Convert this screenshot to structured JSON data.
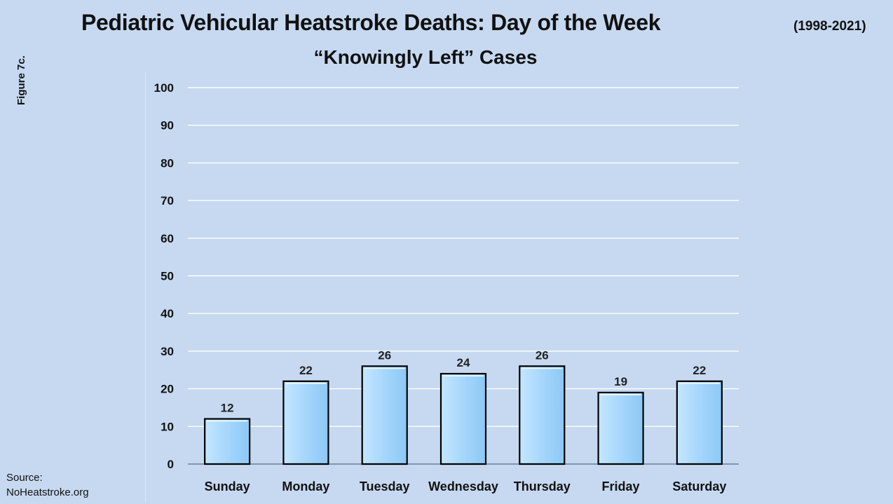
{
  "header": {
    "title": "Pediatric Vehicular Heatstroke Deaths: Day of the Week",
    "years": "(1998-2021)",
    "subtitle": "“Knowingly Left” Cases",
    "figure_label": "Figure 7c."
  },
  "source": {
    "label": "Source:",
    "value": "NoHeatstroke.org"
  },
  "colors": {
    "background": "#c6d9f1",
    "bar_fill": "#a6d6fc",
    "bar_stroke": "#000000",
    "gridline": "#ffffff",
    "axis": "#6d7f99"
  },
  "chart_data": {
    "type": "bar",
    "categories": [
      "Sunday",
      "Monday",
      "Tuesday",
      "Wednesday",
      "Thursday",
      "Friday",
      "Saturday"
    ],
    "values": [
      12,
      22,
      26,
      24,
      26,
      19,
      22
    ],
    "title": "Pediatric Vehicular Heatstroke Deaths: Day of the Week",
    "subtitle": "“Knowingly Left” Cases",
    "xlabel": "",
    "ylabel": "",
    "ylim": [
      0,
      100
    ],
    "yticks": [
      0,
      10,
      20,
      30,
      40,
      50,
      60,
      70,
      80,
      90,
      100
    ],
    "grid": true,
    "data_labels": true
  }
}
